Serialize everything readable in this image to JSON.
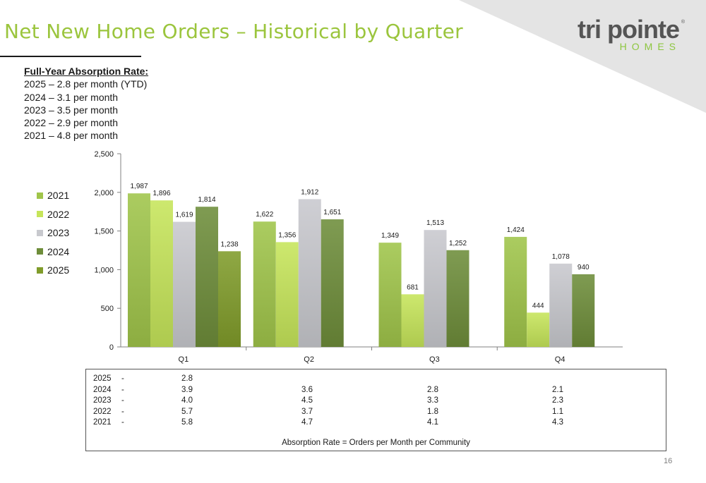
{
  "title": "Net New Home Orders – Historical by Quarter",
  "logo": {
    "main": "tri pointe",
    "sub": "HOMES",
    "reg": "®"
  },
  "absorption": {
    "heading": "Full-Year Absorption Rate:",
    "lines": [
      "2025 – 2.8 per month (YTD)",
      "2024 – 3.1 per month",
      "2023 – 3.5 per month",
      "2022 – 2.9 per month",
      "2021 – 4.8 per month"
    ]
  },
  "colors": {
    "title": "#9BC53D",
    "corner": "#E4E4E4",
    "logo": "#555555",
    "logo_accent": "#8DC63F",
    "2021": "#A0C54A",
    "2022": "#C6E55A",
    "2023": "#C8C9CE",
    "2024": "#6E8D3A",
    "2025": "#809C2A"
  },
  "chart_data": {
    "type": "bar",
    "categories": [
      "Q1",
      "Q2",
      "Q3",
      "Q4"
    ],
    "series": [
      {
        "name": "2021",
        "values": [
          1987,
          1622,
          1349,
          1424
        ],
        "labels": [
          "1,987",
          "1,622",
          "1,349",
          "1,424"
        ]
      },
      {
        "name": "2022",
        "values": [
          1896,
          1356,
          681,
          444
        ],
        "labels": [
          "1,896",
          "1,356",
          "681",
          "444"
        ]
      },
      {
        "name": "2023",
        "values": [
          1619,
          1912,
          1513,
          1078
        ],
        "labels": [
          "1,619",
          "1,912",
          "1,513",
          "1,078"
        ]
      },
      {
        "name": "2024",
        "values": [
          1814,
          1651,
          1252,
          940
        ],
        "labels": [
          "1,814",
          "1,651",
          "1,252",
          "940"
        ]
      },
      {
        "name": "2025",
        "values": [
          1238,
          null,
          null,
          null
        ],
        "labels": [
          "1,238",
          "",
          "",
          ""
        ]
      }
    ],
    "ylim": [
      0,
      2500
    ],
    "yticks": [
      0,
      500,
      1000,
      1500,
      2000,
      2500
    ],
    "ytick_labels": [
      "0",
      "500",
      "1,000",
      "1,500",
      "2,000",
      "2,500"
    ],
    "legend_position": "left",
    "grid": false
  },
  "absorption_table": {
    "rows": [
      {
        "year": "2025",
        "dash": "-",
        "values": [
          "2.8",
          "",
          "",
          ""
        ]
      },
      {
        "year": "2024",
        "dash": "-",
        "values": [
          "3.9",
          "3.6",
          "2.8",
          "2.1"
        ]
      },
      {
        "year": "2023",
        "dash": "-",
        "values": [
          "4.0",
          "4.5",
          "3.3",
          "2.3"
        ]
      },
      {
        "year": "2022",
        "dash": "-",
        "values": [
          "5.7",
          "3.7",
          "1.8",
          "1.1"
        ]
      },
      {
        "year": "2021",
        "dash": "-",
        "values": [
          "5.8",
          "4.7",
          "4.1",
          "4.3"
        ]
      }
    ],
    "note": "Absorption Rate = Orders per Month per Community"
  },
  "page_number": "16"
}
